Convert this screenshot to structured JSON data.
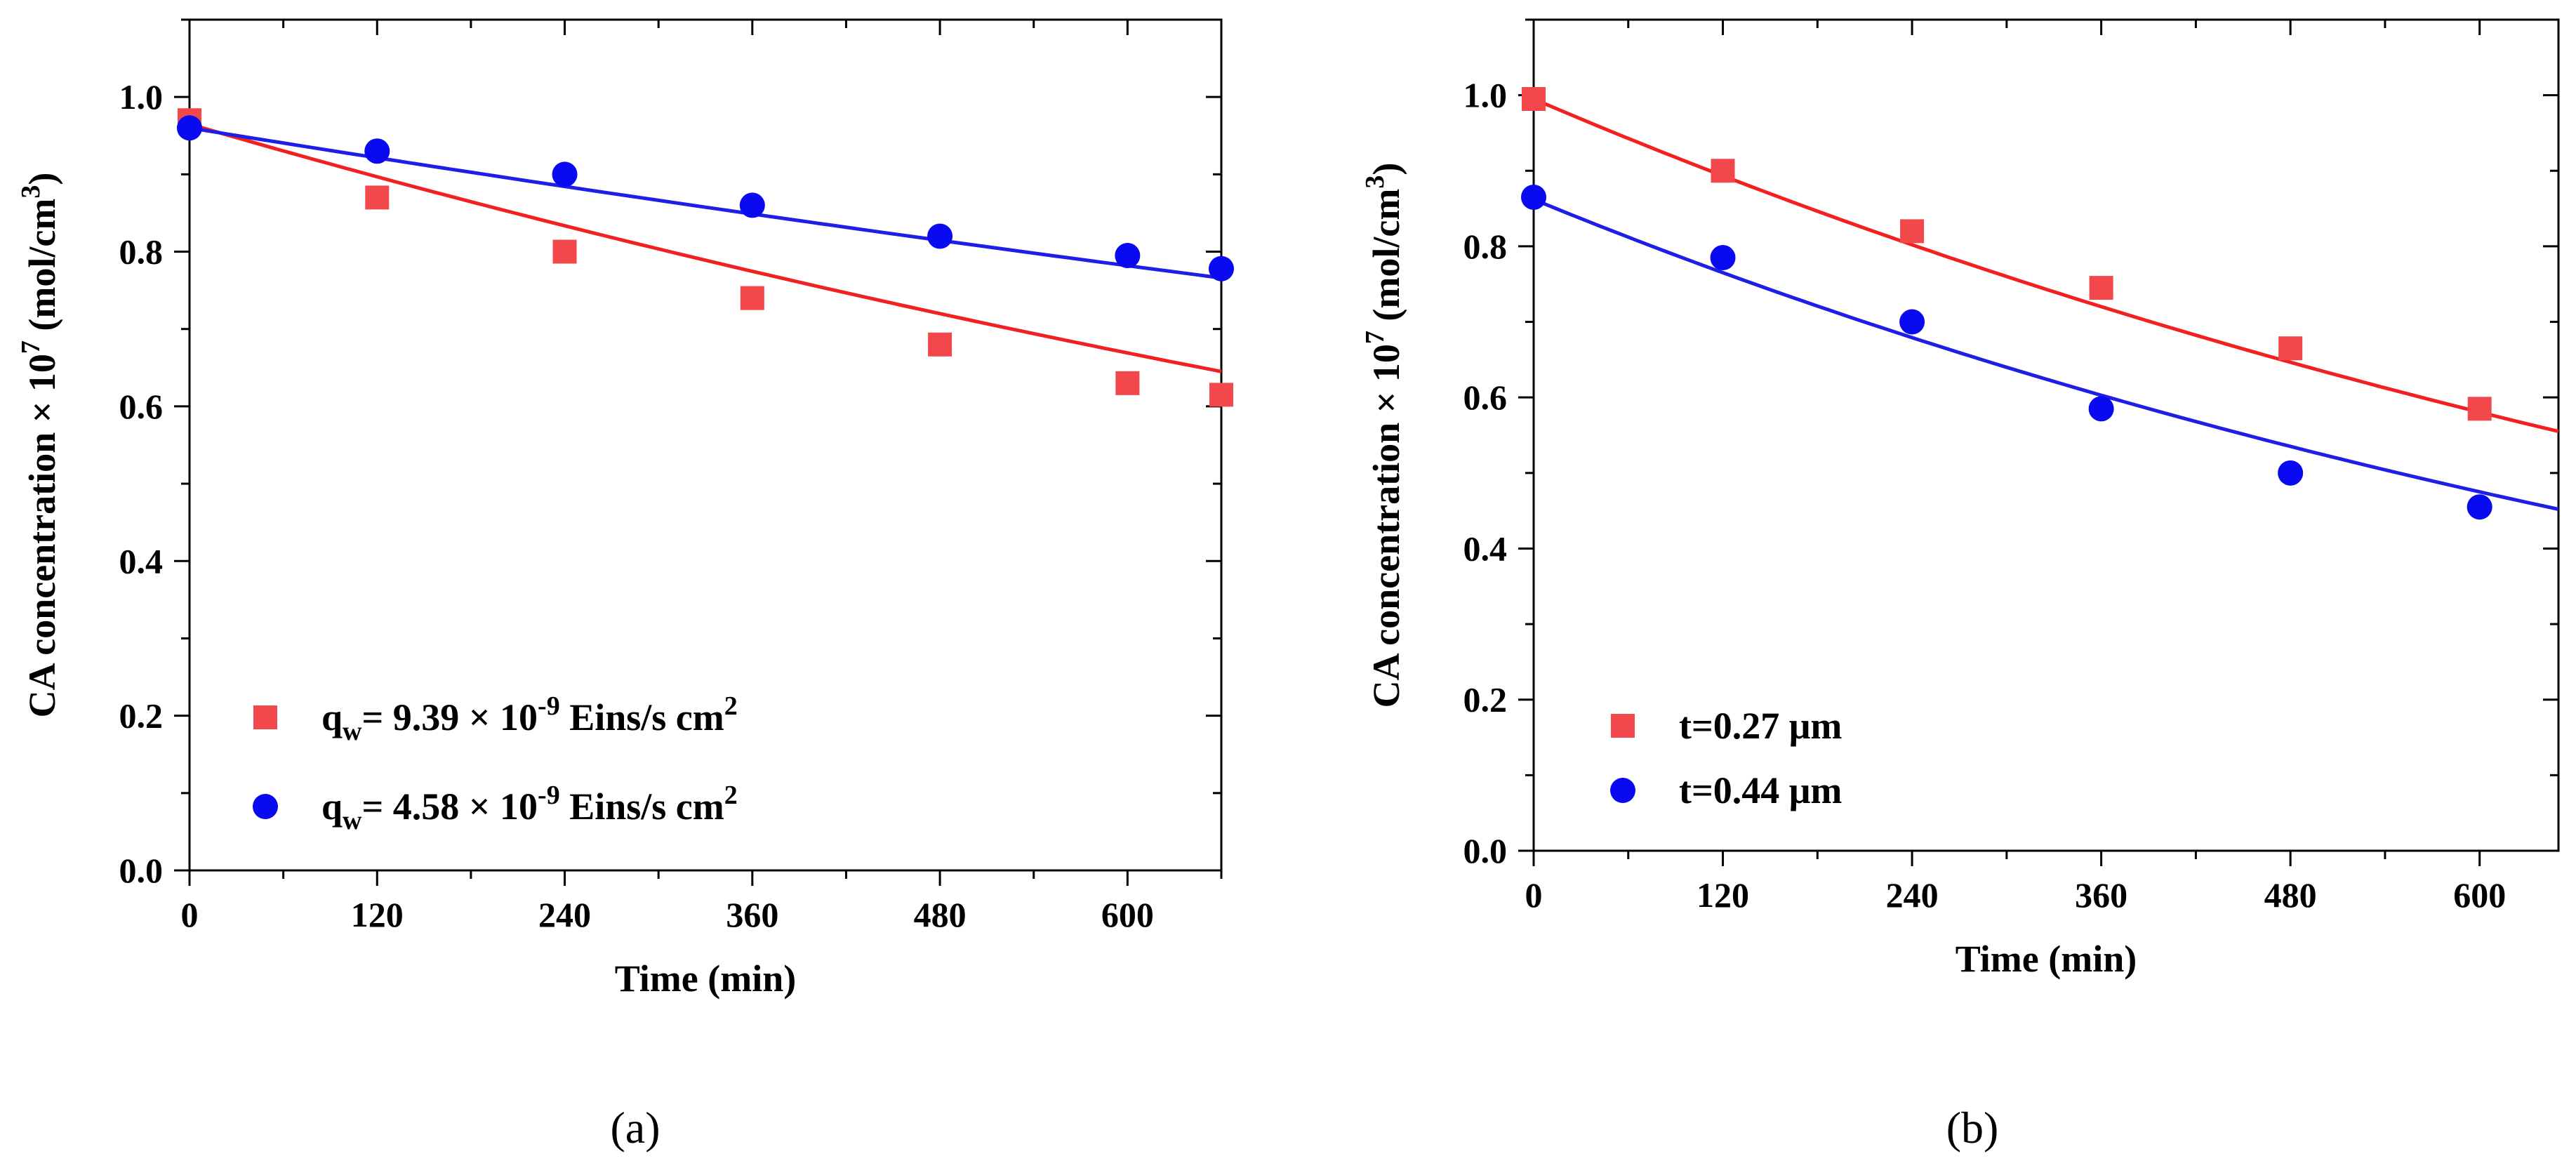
{
  "chart_data": [
    {
      "type": "scatter",
      "panel_label": "(a)",
      "xlabel": "Time (min)",
      "ylabel": {
        "main": "CA concentration × 10",
        "exp": "7",
        "unit": " (mol/cm",
        "unit_exp": "3",
        "close": ")"
      },
      "xlim": [
        0,
        660
      ],
      "ylim": [
        0,
        1.1
      ],
      "xticks": [
        {
          "value": 0,
          "label": "0"
        },
        {
          "value": 120,
          "label": "120"
        },
        {
          "value": 240,
          "label": "240"
        },
        {
          "value": 360,
          "label": "360"
        },
        {
          "value": 480,
          "label": "480"
        },
        {
          "value": 600,
          "label": "600"
        }
      ],
      "yticks": [
        {
          "value": 0,
          "label": "0.0"
        },
        {
          "value": 0.2,
          "label": "0.2"
        },
        {
          "value": 0.4,
          "label": "0.4"
        },
        {
          "value": 0.6,
          "label": "0.6"
        },
        {
          "value": 0.8,
          "label": "0.8"
        },
        {
          "value": 1.0,
          "label": "1.0"
        }
      ],
      "legend_position": "bottom-left",
      "series": [
        {
          "name": "qw = 9.39 × 10^-9 Eins/s cm2",
          "legend": {
            "base": "q",
            "sub": "w",
            "mid": "= 9.39 × 10",
            "exp": "-9",
            "tail": " Eins/s cm",
            "tail_exp": "2"
          },
          "marker": "square",
          "color": "#f2484b",
          "x": [
            0,
            120,
            240,
            360,
            480,
            600,
            660
          ],
          "y": [
            0.97,
            0.87,
            0.8,
            0.74,
            0.68,
            0.63,
            0.615
          ],
          "fit": {
            "kind": "exp",
            "y0": 0.965,
            "x_end": 660,
            "y_end": 0.645,
            "color": "#f22020"
          }
        },
        {
          "name": "qw = 4.58 × 10^-9 Eins/s cm2",
          "legend": {
            "base": "q",
            "sub": "w",
            "mid": "= 4.58 × 10",
            "exp": "-9",
            "tail": " Eins/s cm",
            "tail_exp": "2"
          },
          "marker": "circle",
          "color": "#0a0af0",
          "x": [
            0,
            120,
            240,
            360,
            480,
            600,
            660
          ],
          "y": [
            0.96,
            0.93,
            0.9,
            0.86,
            0.82,
            0.795,
            0.778
          ],
          "fit": {
            "kind": "exp",
            "y0": 0.96,
            "x_end": 660,
            "y_end": 0.766,
            "color": "#1e1ee6"
          }
        }
      ]
    },
    {
      "type": "scatter",
      "panel_label": "(b)",
      "xlabel": "Time (min)",
      "ylabel": {
        "main": "CA concentration × 10",
        "exp": "7",
        "unit": " (mol/cm",
        "unit_exp": "3",
        "close": ")"
      },
      "xlim": [
        0,
        650
      ],
      "ylim": [
        0,
        1.1
      ],
      "xticks": [
        {
          "value": 0,
          "label": "0"
        },
        {
          "value": 120,
          "label": "120"
        },
        {
          "value": 240,
          "label": "240"
        },
        {
          "value": 360,
          "label": "360"
        },
        {
          "value": 480,
          "label": "480"
        },
        {
          "value": 600,
          "label": "600"
        }
      ],
      "yticks": [
        {
          "value": 0,
          "label": "0.0"
        },
        {
          "value": 0.2,
          "label": "0.2"
        },
        {
          "value": 0.4,
          "label": "0.4"
        },
        {
          "value": 0.6,
          "label": "0.6"
        },
        {
          "value": 0.8,
          "label": "0.8"
        },
        {
          "value": 1.0,
          "label": "1.0"
        }
      ],
      "legend_position": "bottom-left",
      "series": [
        {
          "name": "t=0.27 μm",
          "legend": {
            "base": "t=0.27 μm"
          },
          "marker": "square",
          "color": "#f2484b",
          "x": [
            0,
            120,
            240,
            360,
            480,
            600
          ],
          "y": [
            0.995,
            0.9,
            0.82,
            0.745,
            0.665,
            0.585
          ],
          "fit": {
            "kind": "exp",
            "y0": 0.995,
            "x_end": 650,
            "y_end": 0.555,
            "color": "#f22020"
          }
        },
        {
          "name": "t=0.44 μm",
          "legend": {
            "base": "t=0.44 μm"
          },
          "marker": "circle",
          "color": "#0a0af0",
          "x": [
            0,
            120,
            240,
            360,
            480,
            600
          ],
          "y": [
            0.865,
            0.785,
            0.7,
            0.585,
            0.5,
            0.455
          ],
          "fit": {
            "kind": "exp",
            "y0": 0.862,
            "x_end": 650,
            "y_end": 0.452,
            "color": "#1e1ee6"
          }
        }
      ]
    }
  ]
}
